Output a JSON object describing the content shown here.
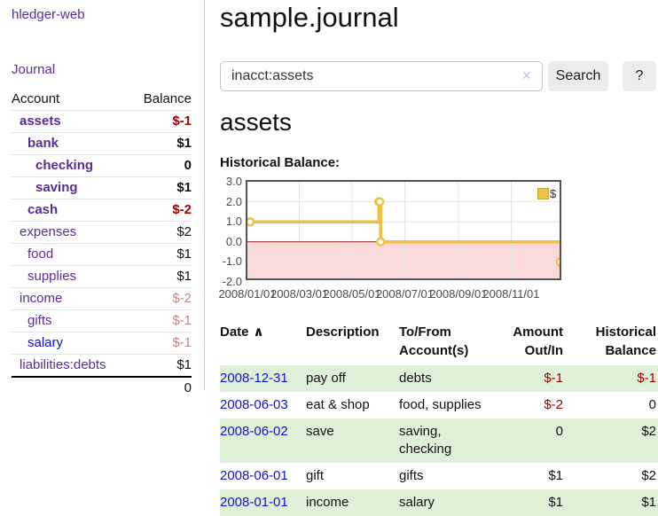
{
  "app": {
    "title": "hledger-web"
  },
  "sidebar": {
    "journal_link": "Journal",
    "header": {
      "account": "Account",
      "balance": "Balance"
    },
    "accounts": [
      {
        "name": "assets",
        "balance": "$-1"
      },
      {
        "name": "bank",
        "balance": "$1"
      },
      {
        "name": "checking",
        "balance": "0"
      },
      {
        "name": "saving",
        "balance": "$1"
      },
      {
        "name": "cash",
        "balance": "$-2"
      },
      {
        "name": "expenses",
        "balance": "$2"
      },
      {
        "name": "food",
        "balance": "$1"
      },
      {
        "name": "supplies",
        "balance": "$1"
      },
      {
        "name": "income",
        "balance": "$-2"
      },
      {
        "name": "gifts",
        "balance": "$-1"
      },
      {
        "name": "salary",
        "balance": "$-1"
      },
      {
        "name": "liabilities:debts",
        "balance": "$1"
      }
    ],
    "total": "0"
  },
  "main": {
    "title": "sample.journal",
    "search": {
      "query": "inacct:assets",
      "clear_icon": "✕",
      "search_button": "Search",
      "help_button": "?"
    },
    "account_heading": "assets",
    "chart_title": "Historical Balance:"
  },
  "chart_data": {
    "type": "line",
    "step": true,
    "title": "Historical Balance:",
    "legend": {
      "label": "$",
      "position": "top-right"
    },
    "ylim": [
      -2,
      3
    ],
    "y_ticks": [
      3,
      2,
      1,
      0,
      -1,
      -2
    ],
    "x_ticks": [
      "2008/01/01",
      "2008/03/01",
      "2008/05/01",
      "2008/07/01",
      "2008/09/01",
      "2008/11/01"
    ],
    "x_range": [
      "2008-01-01",
      "2008-12-31"
    ],
    "grid": true,
    "series": [
      {
        "name": "$",
        "color": "#edc240",
        "points": [
          [
            "2008-01-01",
            1
          ],
          [
            "2008-06-01",
            2
          ],
          [
            "2008-06-02",
            2
          ],
          [
            "2008-06-03",
            0
          ],
          [
            "2008-12-31",
            -1
          ]
        ]
      }
    ],
    "negative_region_fill": "#f9d9d9",
    "zero_line_color": "#8f1d1d"
  },
  "register": {
    "header": {
      "date": "Date",
      "sort_indicator": "∧",
      "description": "Description",
      "accounts": "To/From Account(s)",
      "amount": "Amount Out/In",
      "balance": "Historical Balance"
    },
    "rows": [
      {
        "date": "2008-12-31",
        "description": "pay off",
        "accounts": "debts",
        "amount": "$-1",
        "balance": "$-1"
      },
      {
        "date": "2008-06-03",
        "description": "eat & shop",
        "accounts": "food, supplies",
        "amount": "$-2",
        "balance": "0"
      },
      {
        "date": "2008-06-02",
        "description": "save",
        "accounts": "saving, checking",
        "amount": "0",
        "balance": "$2"
      },
      {
        "date": "2008-06-01",
        "description": "gift",
        "accounts": "gifts",
        "amount": "$1",
        "balance": "$2"
      },
      {
        "date": "2008-01-01",
        "description": "income",
        "accounts": "salary",
        "amount": "$1",
        "balance": "$1"
      }
    ]
  },
  "colors": {
    "accent_purple": "#5b2c98",
    "link_blue": "#1111d6",
    "negative_red": "#a40000",
    "muted_negative": "#c28484",
    "row_green": "#dff0d8",
    "chart_line": "#edc240",
    "chart_negative_fill": "#f9d9d9",
    "zero_line": "#8f1d1d",
    "gridline": "#e4e4e4"
  }
}
